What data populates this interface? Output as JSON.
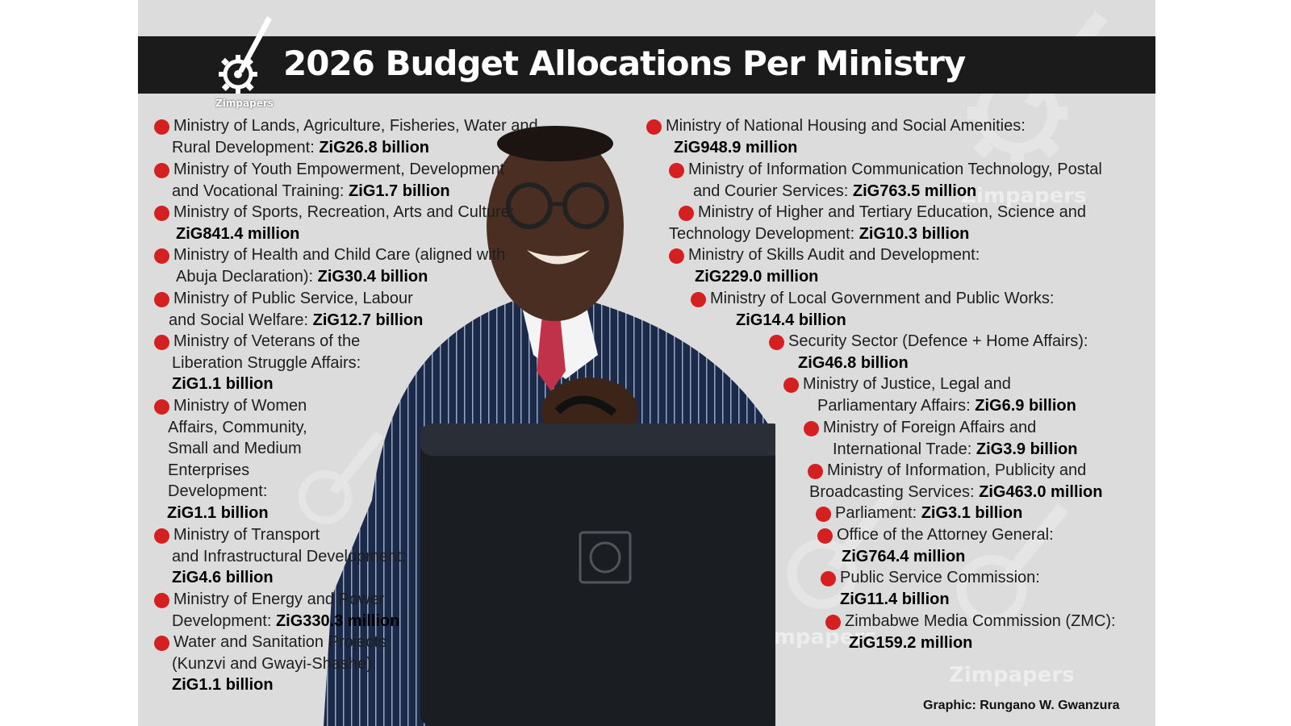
{
  "header": {
    "title": "2026 Budget Allocations Per Ministry",
    "logo_text": "Zimpapers"
  },
  "watermark_text": "Zimpapers",
  "colors": {
    "bullet": "#d42020",
    "title_bar": "#1b1b1b",
    "background": "#dcdcdc"
  },
  "left_items": [
    {
      "lines": [
        "Ministry of Lands, Agriculture, Fisheries, Water and",
        "Rural Development: "
      ],
      "amount": "ZiG26.8 billion"
    },
    {
      "lines": [
        "Ministry of Youth Empowerment, Development",
        "and Vocational Training: "
      ],
      "amount": "ZiG1.7 billion"
    },
    {
      "lines": [
        "Ministry of Sports, Recreation, Arts and Culture:",
        ""
      ],
      "amount": "ZiG841.4 million"
    },
    {
      "lines": [
        "Ministry of Health and Child Care (aligned with",
        "Abuja Declaration): "
      ],
      "amount": "ZiG30.4 billion"
    },
    {
      "lines": [
        "Ministry of Public Service, Labour",
        "and Social Welfare: "
      ],
      "amount": "ZiG12.7 billion"
    },
    {
      "lines": [
        "Ministry of Veterans of the",
        "Liberation Struggle Affairs:",
        ""
      ],
      "amount": "ZiG1.1 billion"
    },
    {
      "lines": [
        "Ministry of Women",
        "Affairs, Community,",
        "Small and Medium",
        "Enterprises",
        "Development:",
        ""
      ],
      "amount": "ZiG1.1 billion"
    },
    {
      "lines": [
        "Ministry of Transport",
        "and Infrastructural Development:",
        ""
      ],
      "amount": "ZiG4.6 billion"
    },
    {
      "lines": [
        "Ministry of Energy and Power",
        "Development: "
      ],
      "amount": "ZiG330.3 million"
    },
    {
      "lines": [
        "Water and Sanitation Projects",
        "(Kunzvi and Gwayi-Shashe):",
        ""
      ],
      "amount": "ZiG1.1 billion"
    }
  ],
  "right_items": [
    {
      "lines": [
        "Ministry of National Housing and Social Amenities:",
        ""
      ],
      "amount": "ZiG948.9 million"
    },
    {
      "lines": [
        "Ministry of Information Communication Technology, Postal",
        "and Courier Services: "
      ],
      "amount": "ZiG763.5 million"
    },
    {
      "lines": [
        "Ministry of Higher and Tertiary Education, Science and",
        "Technology Development: "
      ],
      "amount": "ZiG10.3 billion"
    },
    {
      "lines": [
        "Ministry of Skills Audit and Development:",
        ""
      ],
      "amount": "ZiG229.0 million"
    },
    {
      "lines": [
        "Ministry of Local Government and Public Works:",
        ""
      ],
      "amount": "ZiG14.4 billion"
    },
    {
      "lines": [
        "Security Sector (Defence + Home Affairs):",
        ""
      ],
      "amount": "ZiG46.8 billion"
    },
    {
      "lines": [
        "Ministry of Justice, Legal and",
        "Parliamentary Affairs: "
      ],
      "amount": "ZiG6.9 billion"
    },
    {
      "lines": [
        "Ministry of Foreign Affairs and",
        "International Trade: "
      ],
      "amount": "ZiG3.9 billion"
    },
    {
      "lines": [
        "Ministry of Information, Publicity and",
        "Broadcasting Services: "
      ],
      "amount": "ZiG463.0 million"
    },
    {
      "lines": [
        "Parliament: "
      ],
      "amount": "ZiG3.1 billion"
    },
    {
      "lines": [
        "Office of the Attorney General:",
        ""
      ],
      "amount": "ZiG764.4 million"
    },
    {
      "lines": [
        "Public Service Commission:",
        ""
      ],
      "amount": "ZiG11.4 billion"
    },
    {
      "lines": [
        "Zimbabwe Media Commission (ZMC):",
        ""
      ],
      "amount": "ZiG159.2 million"
    }
  ],
  "credit": "Graphic: Rungano W. Gwanzura"
}
